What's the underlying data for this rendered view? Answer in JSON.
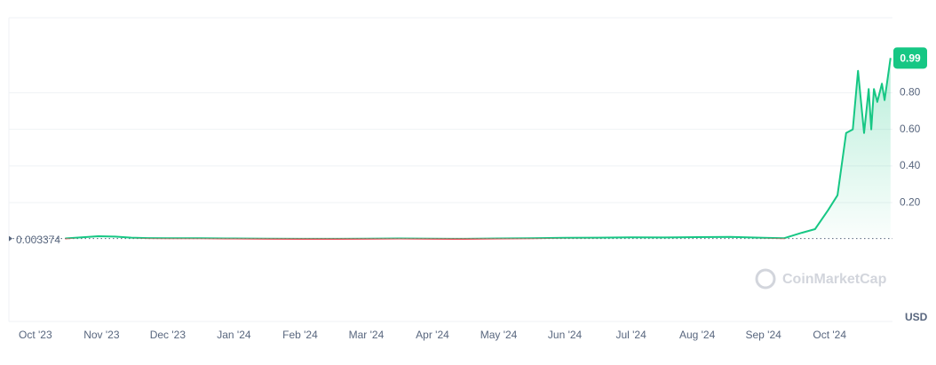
{
  "chart_data": {
    "type": "line",
    "x": [
      0.45,
      0.7,
      0.95,
      1.2,
      1.45,
      1.7,
      2,
      2.5,
      3,
      3.5,
      4,
      4.5,
      5,
      5.5,
      6,
      6.5,
      7,
      7.5,
      8,
      8.5,
      9,
      9.5,
      10,
      10.5,
      11,
      11.31,
      11.58,
      11.78,
      11.98,
      12.12,
      12.25,
      12.35,
      12.43,
      12.52,
      12.59,
      12.63,
      12.67,
      12.72,
      12.79,
      12.83,
      12.92
    ],
    "series": [
      {
        "color": "#16c784",
        "below_color": "#ea3943",
        "values": [
          0.004,
          0.01,
          0.016,
          0.014,
          0.008,
          0.006,
          0.005,
          0.005,
          0.004,
          0.003,
          0.002,
          0.002,
          0.003,
          0.004,
          0.003,
          0.002,
          0.004,
          0.005,
          0.007,
          0.008,
          0.01,
          0.009,
          0.011,
          0.012,
          0.007,
          0.005,
          0.035,
          0.055,
          0.16,
          0.24,
          0.58,
          0.6,
          0.92,
          0.58,
          0.82,
          0.6,
          0.82,
          0.75,
          0.85,
          0.76,
          0.99
        ]
      }
    ],
    "baseline": 0.003374,
    "current_price": 0.99,
    "xlim": [
      -0.4,
      12.95
    ],
    "xticks": [
      {
        "value": 0,
        "label": "Oct '23"
      },
      {
        "value": 1,
        "label": "Nov '23"
      },
      {
        "value": 2,
        "label": "Dec '23"
      },
      {
        "value": 3,
        "label": "Jan '24"
      },
      {
        "value": 4,
        "label": "Feb '24"
      },
      {
        "value": 5,
        "label": "Mar '24"
      },
      {
        "value": 6,
        "label": "Apr '24"
      },
      {
        "value": 7,
        "label": "May '24"
      },
      {
        "value": 8,
        "label": "Jun '24"
      },
      {
        "value": 9,
        "label": "Jul '24"
      },
      {
        "value": 10,
        "label": "Aug '24"
      },
      {
        "value": 11,
        "label": "Sep '24"
      },
      {
        "value": 12,
        "label": "Oct '24"
      }
    ],
    "ylim": [
      -0.45,
      1.21
    ],
    "yticks": [
      {
        "value": 0.2,
        "label": "0.20"
      },
      {
        "value": 0.4,
        "label": "0.40"
      },
      {
        "value": 0.6,
        "label": "0.60"
      },
      {
        "value": 0.8,
        "label": "0.80"
      }
    ],
    "grid": true,
    "currency": "USD",
    "watermark": "CoinMarketCap"
  }
}
